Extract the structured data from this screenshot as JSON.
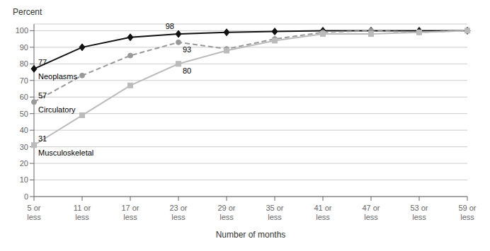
{
  "chart_data": {
    "type": "line",
    "categories": [
      "5 or\nless",
      "11 or\nless",
      "17 or\nless",
      "23 or\nless",
      "29 or\nless",
      "35 or\nless",
      "41 or\nless",
      "47 or\nless",
      "53 or\nless",
      "59 or\nless"
    ],
    "x_label": "Number of months",
    "y_label": "Percent",
    "ylim": [
      0,
      104
    ],
    "yticks": [
      0,
      10,
      20,
      30,
      40,
      50,
      60,
      70,
      80,
      90,
      100
    ],
    "grid": true,
    "series": [
      {
        "name": "Neoplasms",
        "color": "#111111",
        "marker": "diamond",
        "line_style": "solid",
        "values": [
          77,
          90,
          96,
          98,
          99,
          99.5,
          100,
          100,
          100,
          100
        ]
      },
      {
        "name": "Circulatory",
        "color": "#999999",
        "marker": "circle",
        "line_style": "dashed",
        "values": [
          57,
          73,
          85,
          93,
          89,
          95,
          99,
          100,
          99,
          100
        ]
      },
      {
        "name": "Musculoskeletal",
        "color": "#bbbbbb",
        "marker": "square",
        "line_style": "solid",
        "values": [
          31,
          49,
          67,
          80,
          88,
          94,
          98,
          98,
          99,
          100
        ]
      }
    ],
    "annotations": [
      {
        "text": "77",
        "x": "5 or\nless",
        "y": 77
      },
      {
        "text": "57",
        "x": "5 or\nless",
        "y": 57
      },
      {
        "text": "31",
        "x": "5 or\nless",
        "y": 31
      },
      {
        "text": "98",
        "x": "23 or\nless",
        "y": 98
      },
      {
        "text": "93",
        "x": "23 or\nless",
        "y": 93
      },
      {
        "text": "80",
        "x": "23 or\nless",
        "y": 80
      }
    ]
  }
}
